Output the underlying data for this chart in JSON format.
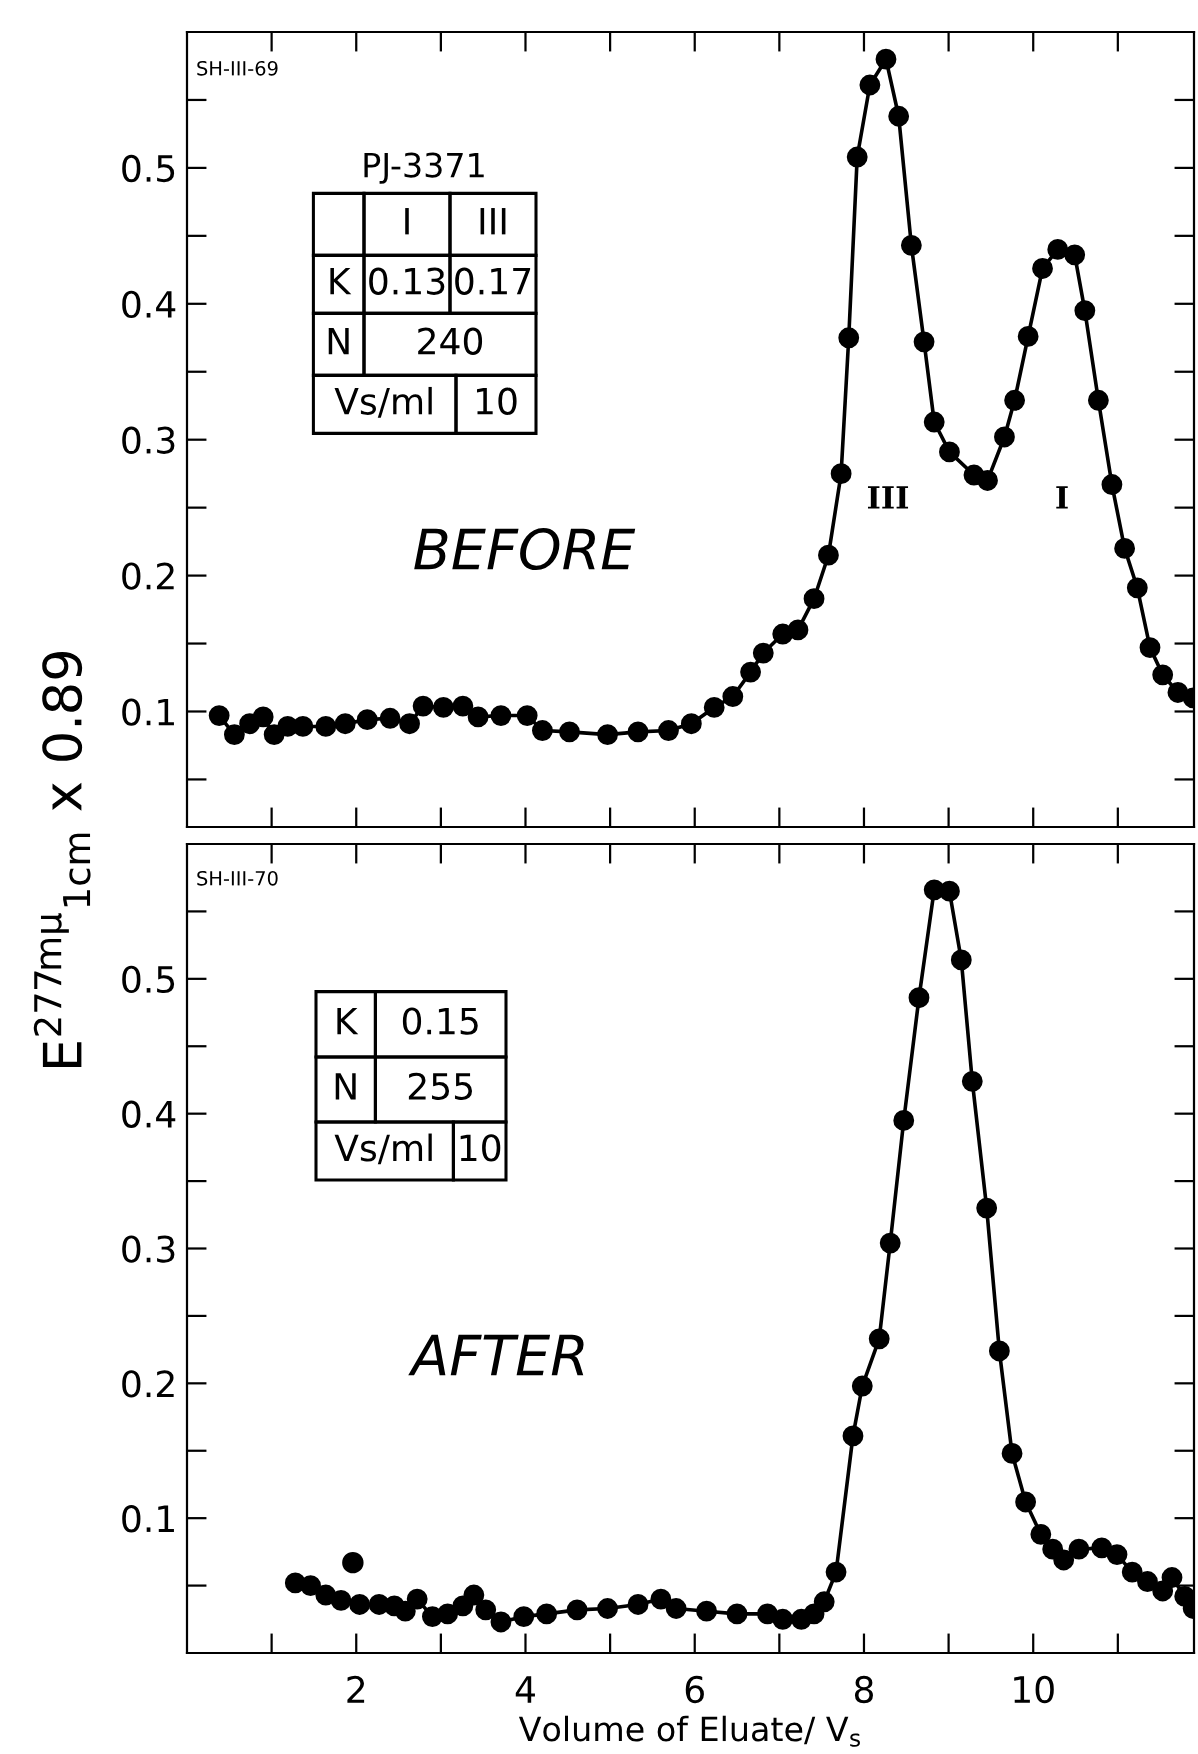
{
  "chart_data": [
    {
      "type": "line",
      "ylabel": "E$^{277mμ}$$_{1cm}$ x 0.89",
      "marker": "circle",
      "line_style": "solid",
      "legend": false,
      "grid": false,
      "tick_labels": "y",
      "xlim": [
        0,
        11.9
      ],
      "ylim": [
        0.015,
        0.6
      ],
      "xticks": [
        {
          "value": 1,
          "label": null
        },
        {
          "value": 2,
          "label": null
        },
        {
          "value": 3,
          "label": null
        },
        {
          "value": 4,
          "label": null
        },
        {
          "value": 5,
          "label": null
        },
        {
          "value": 6,
          "label": null
        },
        {
          "value": 7,
          "label": null
        },
        {
          "value": 8,
          "label": null
        },
        {
          "value": 9,
          "label": null
        },
        {
          "value": 10,
          "label": null
        },
        {
          "value": 11,
          "label": null
        }
      ],
      "yticks": [
        {
          "value": 0.05,
          "label": null
        },
        {
          "value": 0.1,
          "label": "0.1"
        },
        {
          "value": 0.15,
          "label": null
        },
        {
          "value": 0.2,
          "label": "0.2"
        },
        {
          "value": 0.25,
          "label": null
        },
        {
          "value": 0.3,
          "label": "0.3"
        },
        {
          "value": 0.35,
          "label": null
        },
        {
          "value": 0.4,
          "label": "0.4"
        },
        {
          "value": 0.45,
          "label": null
        },
        {
          "value": 0.5,
          "label": "0.5"
        },
        {
          "value": 0.55,
          "label": null
        }
      ],
      "series": [
        {
          "color": "#000000",
          "x": [
            0.38,
            0.56,
            0.74,
            0.9,
            1.03,
            1.19,
            1.37,
            1.64,
            1.87,
            2.13,
            2.4,
            2.63,
            2.79,
            3.03,
            3.26,
            3.44,
            3.71,
            4.02,
            4.2,
            4.52,
            4.97,
            5.33,
            5.69,
            5.96,
            6.23,
            6.45,
            6.66,
            6.81,
            7.04,
            7.22,
            7.41,
            7.58,
            7.73,
            7.82,
            7.92,
            8.07,
            8.26,
            8.41,
            8.56,
            8.71,
            8.83,
            9.01,
            9.3,
            9.46,
            9.66,
            9.78,
            9.94,
            10.11,
            10.29,
            10.49,
            10.61,
            10.77,
            10.93,
            11.08,
            11.23,
            11.38,
            11.53,
            11.71,
            11.89
          ],
          "values": [
            0.097,
            0.083,
            0.091,
            0.096,
            0.083,
            0.089,
            0.089,
            0.089,
            0.091,
            0.094,
            0.095,
            0.091,
            0.104,
            0.103,
            0.104,
            0.096,
            0.097,
            0.097,
            0.086,
            0.085,
            0.083,
            0.085,
            0.086,
            0.091,
            0.103,
            0.111,
            0.129,
            0.143,
            0.157,
            0.16,
            0.183,
            0.215,
            0.275,
            0.375,
            0.508,
            0.561,
            0.58,
            0.538,
            0.443,
            0.372,
            0.313,
            0.291,
            0.274,
            0.27,
            0.302,
            0.329,
            0.376,
            0.426,
            0.44,
            0.436,
            0.395,
            0.329,
            0.267,
            0.22,
            0.191,
            0.147,
            0.127,
            0.114,
            0.11
          ]
        }
      ],
      "annotations": [
        "SH-III-69",
        "PJ-3371",
        "I",
        "III",
        "K",
        "0.13",
        "0.17",
        "N",
        "240",
        "Vs/ml",
        "10",
        "BEFORE",
        "III",
        "I"
      ]
    },
    {
      "type": "line",
      "xlabel": "Volume of Eluate/ V$_{s}$",
      "marker": "circle",
      "line_style": "solid",
      "legend": false,
      "grid": false,
      "xlim": [
        0,
        11.9
      ],
      "ylim": [
        0,
        0.6
      ],
      "xticks": [
        {
          "value": 1,
          "label": null
        },
        2,
        {
          "value": 3,
          "label": null
        },
        4,
        {
          "value": 5,
          "label": null
        },
        6,
        {
          "value": 7,
          "label": null
        },
        8,
        {
          "value": 9,
          "label": null
        },
        10,
        {
          "value": 11,
          "label": null
        }
      ],
      "yticks": [
        {
          "value": 0.05,
          "label": null
        },
        {
          "value": 0.1,
          "label": "0.1"
        },
        {
          "value": 0.15,
          "label": null
        },
        {
          "value": 0.2,
          "label": "0.2"
        },
        {
          "value": 0.25,
          "label": null
        },
        {
          "value": 0.3,
          "label": "0.3"
        },
        {
          "value": 0.35,
          "label": null
        },
        {
          "value": 0.4,
          "label": "0.4"
        },
        {
          "value": 0.45,
          "label": null
        },
        {
          "value": 0.5,
          "label": "0.5"
        },
        {
          "value": 0.55,
          "label": null
        }
      ],
      "series": [
        {
          "color": "#000000",
          "x": [
            1.28,
            1.46,
            1.64,
            1.82,
            2.04,
            2.27,
            2.45,
            2.58,
            2.72,
            2.9,
            3.08,
            3.26,
            3.39,
            3.53,
            3.71,
            3.98,
            4.25,
            4.61,
            4.97,
            5.33,
            5.6,
            5.78,
            6.14,
            6.5,
            6.86,
            7.04,
            7.26,
            7.41,
            7.53,
            7.67,
            7.87,
            7.98,
            8.18,
            8.31,
            8.47,
            8.65,
            8.83,
            9.01,
            9.15,
            9.28,
            9.45,
            9.6,
            9.75,
            9.91,
            10.09,
            10.23,
            10.36,
            10.54,
            10.81,
            10.99,
            11.17,
            11.35,
            11.53,
            11.64,
            11.79,
            11.89
          ],
          "values": [
            0.052,
            0.05,
            0.043,
            0.039,
            0.036,
            0.036,
            0.035,
            0.031,
            0.04,
            0.027,
            0.029,
            0.035,
            0.043,
            0.032,
            0.023,
            0.027,
            0.029,
            0.032,
            0.033,
            0.036,
            0.04,
            0.033,
            0.031,
            0.029,
            0.029,
            0.025,
            0.025,
            0.029,
            0.038,
            0.06,
            0.161,
            0.198,
            0.233,
            0.304,
            0.395,
            0.486,
            0.566,
            0.565,
            0.514,
            0.424,
            0.33,
            0.224,
            0.148,
            0.112,
            0.088,
            0.077,
            0.069,
            0.077,
            0.078,
            0.073,
            0.06,
            0.053,
            0.046,
            0.056,
            0.042,
            0.033
          ]
        },
        {
          "type": "scatter",
          "color": "#000000",
          "x": [
            1.96
          ],
          "values": [
            0.067
          ]
        }
      ],
      "annotations": [
        "SH-III-70",
        "K",
        "0.15",
        "N",
        "255",
        "Vs/ml",
        "10",
        "AFTER"
      ]
    }
  ]
}
